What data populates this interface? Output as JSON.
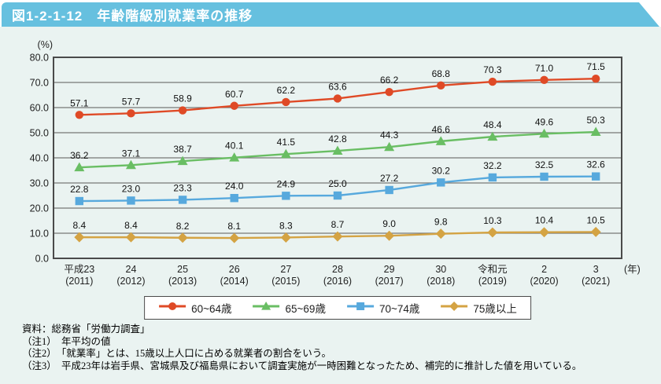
{
  "header": {
    "title": "図1-2-1-12　年齢階級別就業率の推移",
    "bar_color": "#66C0DF",
    "text_color": "#ffffff"
  },
  "page": {
    "background_color": "#EAF3F1"
  },
  "chart_data": {
    "type": "line",
    "title": "年齢階級別就業率の推移",
    "ylabel": "(%)",
    "xlabel_unit": "(年)",
    "ylim": [
      0,
      80
    ],
    "ytick_step": 10,
    "grid": "horizontal",
    "legend_position": "bottom",
    "categories": [
      {
        "era": "平成23",
        "year": "(2011)"
      },
      {
        "era": "24",
        "year": "(2012)"
      },
      {
        "era": "25",
        "year": "(2013)"
      },
      {
        "era": "26",
        "year": "(2014)"
      },
      {
        "era": "27",
        "year": "(2015)"
      },
      {
        "era": "28",
        "year": "(2016)"
      },
      {
        "era": "29",
        "year": "(2017)"
      },
      {
        "era": "30",
        "year": "(2018)"
      },
      {
        "era": "令和元",
        "year": "(2019)"
      },
      {
        "era": "2",
        "year": "(2020)"
      },
      {
        "era": "3",
        "year": "(2021)"
      }
    ],
    "series": [
      {
        "name": "60~64歳",
        "marker": "circle",
        "color": "#DF4A26",
        "values": [
          57.1,
          57.7,
          58.9,
          60.7,
          62.2,
          63.6,
          66.2,
          68.8,
          70.3,
          71.0,
          71.5
        ]
      },
      {
        "name": "65~69歳",
        "marker": "triangle",
        "color": "#69BE63",
        "values": [
          36.2,
          37.1,
          38.7,
          40.1,
          41.5,
          42.8,
          44.3,
          46.6,
          48.4,
          49.6,
          50.3
        ]
      },
      {
        "name": "70~74歳",
        "marker": "square",
        "color": "#57A9DD",
        "values": [
          22.8,
          23.0,
          23.3,
          24.0,
          24.9,
          25.0,
          27.2,
          30.2,
          32.2,
          32.5,
          32.6
        ]
      },
      {
        "name": "75歳以上",
        "marker": "diamond",
        "color": "#D4A343",
        "values": [
          8.4,
          8.4,
          8.2,
          8.1,
          8.3,
          8.7,
          9.0,
          9.8,
          10.3,
          10.4,
          10.5
        ]
      }
    ]
  },
  "notes": {
    "source": "資料：総務省「労働力調査」",
    "note1": "（注1）　年平均の値",
    "note2": "（注2）　「就業率」とは、15歳以上人口に占める就業者の割合をいう。",
    "note3": "（注3）　平成23年は岩手県、宮城県及び福島県において調査実施が一時困難となったため、補完的に推計した値を用いている。"
  }
}
